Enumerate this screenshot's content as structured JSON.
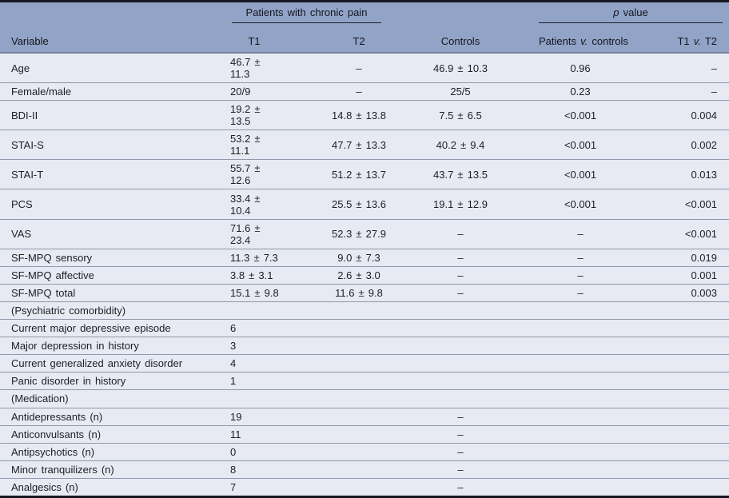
{
  "table": {
    "group_headers": {
      "patients_group": "Patients with chronic pain",
      "p_value_group": {
        "italic": "p",
        "rest": " value"
      }
    },
    "columns": {
      "variable": "Variable",
      "t1": "T1",
      "t2": "T2",
      "controls": "Controls",
      "patients_v_controls": {
        "pre": "Patients ",
        "italic": "v.",
        "post": " controls"
      },
      "t1_v_t2": {
        "pre": "T1 ",
        "italic": "v.",
        "post": " T2"
      }
    },
    "rows": [
      {
        "label": "Age",
        "t1": "46.7 ± 11.3",
        "t2": "–",
        "controls": "46.9 ± 10.3",
        "pvc": "0.96",
        "t1vt2": "–"
      },
      {
        "label": "Female/male",
        "t1": "20/9",
        "t2": "–",
        "controls": "25/5",
        "pvc": "0.23",
        "t1vt2": "–"
      },
      {
        "label": "BDI-II",
        "t1": "19.2 ± 13.5",
        "t2": "14.8 ± 13.8",
        "controls": "7.5 ± 6.5",
        "pvc": "<0.001",
        "t1vt2": "0.004"
      },
      {
        "label": "STAI-S",
        "t1": "53.2 ± 11.1",
        "t2": "47.7 ± 13.3",
        "controls": "40.2 ± 9.4",
        "pvc": "<0.001",
        "t1vt2": "0.002"
      },
      {
        "label": "STAI-T",
        "t1": "55.7 ± 12.6",
        "t2": "51.2 ± 13.7",
        "controls": "43.7 ± 13.5",
        "pvc": "<0.001",
        "t1vt2": "0.013"
      },
      {
        "label": "PCS",
        "t1": "33.4 ± 10.4",
        "t2": "25.5 ± 13.6",
        "controls": "19.1 ± 12.9",
        "pvc": "<0.001",
        "t1vt2": "<0.001"
      },
      {
        "label": "VAS",
        "t1": "71.6 ± 23.4",
        "t2": "52.3 ± 27.9",
        "controls": "–",
        "pvc": "–",
        "t1vt2": "<0.001"
      },
      {
        "label": "SF-MPQ sensory",
        "t1": "11.3 ± 7.3",
        "t2": "9.0 ± 7.3",
        "controls": "–",
        "pvc": "–",
        "t1vt2": "0.019"
      },
      {
        "label": "SF-MPQ affective",
        "t1": "3.8 ± 3.1",
        "t2": "2.6 ± 3.0",
        "controls": "–",
        "pvc": "–",
        "t1vt2": "0.001"
      },
      {
        "label": "SF-MPQ total",
        "t1": "15.1 ± 9.8",
        "t2": "11.6 ± 9.8",
        "controls": "–",
        "pvc": "–",
        "t1vt2": "0.003"
      },
      {
        "label": "(Psychiatric comorbidity)",
        "t1": "",
        "t2": "",
        "controls": "",
        "pvc": "",
        "t1vt2": ""
      },
      {
        "label": "Current major depressive episode",
        "t1": "6",
        "t2": "",
        "controls": "",
        "pvc": "",
        "t1vt2": ""
      },
      {
        "label": "Major depression in history",
        "t1": "3",
        "t2": "",
        "controls": "",
        "pvc": "",
        "t1vt2": ""
      },
      {
        "label": "Current generalized anxiety disorder",
        "t1": "4",
        "t2": "",
        "controls": "",
        "pvc": "",
        "t1vt2": ""
      },
      {
        "label": "Panic disorder in history",
        "t1": "1",
        "t2": "",
        "controls": "",
        "pvc": "",
        "t1vt2": ""
      },
      {
        "label": "(Medication)",
        "t1": "",
        "t2": "",
        "controls": "",
        "pvc": "",
        "t1vt2": ""
      },
      {
        "label": "Antidepressants (n)",
        "t1": "19",
        "t2": "",
        "controls": "–",
        "pvc": "",
        "t1vt2": ""
      },
      {
        "label": "Anticonvulsants (n)",
        "t1": "11",
        "t2": "",
        "controls": "–",
        "pvc": "",
        "t1vt2": ""
      },
      {
        "label": "Antipsychotics (n)",
        "t1": "0",
        "t2": "",
        "controls": "–",
        "pvc": "",
        "t1vt2": ""
      },
      {
        "label": "Minor tranquilizers (n)",
        "t1": "8",
        "t2": "",
        "controls": "–",
        "pvc": "",
        "t1vt2": ""
      },
      {
        "label": "Analgesics (n)",
        "t1": "7",
        "t2": "",
        "controls": "–",
        "pvc": "",
        "t1vt2": ""
      }
    ],
    "colors": {
      "header_bg": "#91a4c7",
      "row_bg": "#e7eaf3",
      "divider": "#9099ab",
      "dark_border": "#171722",
      "text": "#1e1e24"
    }
  }
}
